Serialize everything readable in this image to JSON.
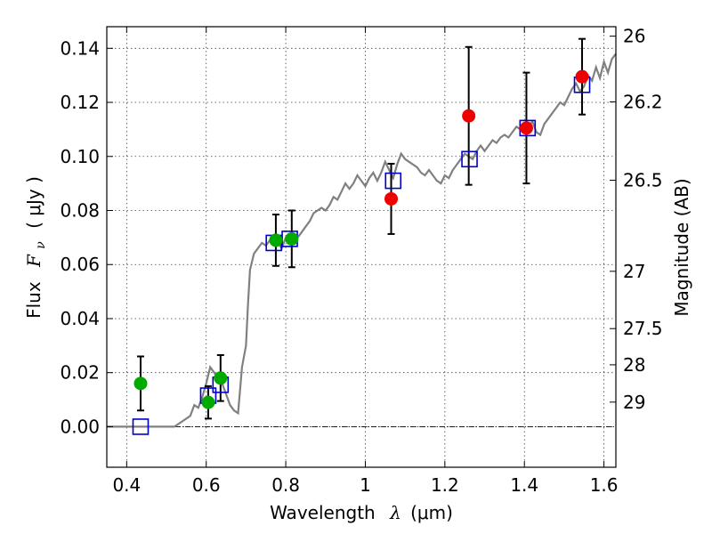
{
  "chart_data": {
    "type": "scatter",
    "title": "",
    "xlabel_text": "Wavelength",
    "xlabel_symbol": "λ",
    "xlabel_unit": "(μm)",
    "ylabel_text": "Flux",
    "ylabel_symbol": "F",
    "ylabel_subscript": "ν",
    "ylabel_unit": "( μJy )",
    "y2label": "Magnitude (AB)",
    "xlim": [
      0.35,
      1.63
    ],
    "ylim": [
      -0.015,
      0.148
    ],
    "grid": true,
    "x_ticks": [
      0.4,
      0.6,
      0.8,
      1.0,
      1.2,
      1.4,
      1.6
    ],
    "x_tick_labels": [
      "0.4",
      "0.6",
      "0.8",
      "1",
      "1.2",
      "1.4",
      "1.6"
    ],
    "y_ticks": [
      0.0,
      0.02,
      0.04,
      0.06,
      0.08,
      0.1,
      0.12,
      0.14
    ],
    "y_tick_labels": [
      "0.00",
      "0.02",
      "0.04",
      "0.06",
      "0.08",
      "0.10",
      "0.12",
      "0.14"
    ],
    "y2_ticks": [
      {
        "label": "26",
        "flux": 0.1445
      },
      {
        "label": "26.2",
        "flux": 0.1202
      },
      {
        "label": "26.5",
        "flux": 0.0912
      },
      {
        "label": "27",
        "flux": 0.0575
      },
      {
        "label": "27.5",
        "flux": 0.0363
      },
      {
        "label": "28",
        "flux": 0.0229
      },
      {
        "label": "29",
        "flux": 0.0091
      }
    ],
    "colors": {
      "spectrum": "#808080",
      "model": "#0000cc",
      "green": "#00aa00",
      "red": "#ee0000",
      "errorbar": "#000000",
      "zero_line": "#000000"
    },
    "spectrum": [
      [
        0.35,
        0.0
      ],
      [
        0.52,
        0.0
      ],
      [
        0.54,
        0.002
      ],
      [
        0.56,
        0.004
      ],
      [
        0.57,
        0.008
      ],
      [
        0.58,
        0.007
      ],
      [
        0.59,
        0.011
      ],
      [
        0.6,
        0.016
      ],
      [
        0.61,
        0.022
      ],
      [
        0.62,
        0.02
      ],
      [
        0.63,
        0.018
      ],
      [
        0.64,
        0.016
      ],
      [
        0.65,
        0.012
      ],
      [
        0.66,
        0.008
      ],
      [
        0.67,
        0.006
      ],
      [
        0.68,
        0.005
      ],
      [
        0.69,
        0.022
      ],
      [
        0.7,
        0.03
      ],
      [
        0.705,
        0.045
      ],
      [
        0.71,
        0.058
      ],
      [
        0.72,
        0.064
      ],
      [
        0.73,
        0.066
      ],
      [
        0.74,
        0.068
      ],
      [
        0.75,
        0.067
      ],
      [
        0.76,
        0.069
      ],
      [
        0.77,
        0.07
      ],
      [
        0.78,
        0.068
      ],
      [
        0.79,
        0.066
      ],
      [
        0.8,
        0.07
      ],
      [
        0.81,
        0.069
      ],
      [
        0.82,
        0.071
      ],
      [
        0.83,
        0.07
      ],
      [
        0.84,
        0.072
      ],
      [
        0.85,
        0.074
      ],
      [
        0.86,
        0.076
      ],
      [
        0.87,
        0.079
      ],
      [
        0.88,
        0.08
      ],
      [
        0.89,
        0.081
      ],
      [
        0.9,
        0.08
      ],
      [
        0.91,
        0.082
      ],
      [
        0.92,
        0.085
      ],
      [
        0.93,
        0.084
      ],
      [
        0.94,
        0.087
      ],
      [
        0.95,
        0.09
      ],
      [
        0.96,
        0.088
      ],
      [
        0.97,
        0.09
      ],
      [
        0.98,
        0.093
      ],
      [
        0.99,
        0.091
      ],
      [
        1.0,
        0.089
      ],
      [
        1.01,
        0.092
      ],
      [
        1.02,
        0.094
      ],
      [
        1.03,
        0.091
      ],
      [
        1.04,
        0.094
      ],
      [
        1.05,
        0.098
      ],
      [
        1.06,
        0.095
      ],
      [
        1.07,
        0.092
      ],
      [
        1.08,
        0.097
      ],
      [
        1.09,
        0.101
      ],
      [
        1.1,
        0.099
      ],
      [
        1.11,
        0.098
      ],
      [
        1.12,
        0.097
      ],
      [
        1.13,
        0.096
      ],
      [
        1.14,
        0.094
      ],
      [
        1.15,
        0.093
      ],
      [
        1.16,
        0.095
      ],
      [
        1.17,
        0.093
      ],
      [
        1.18,
        0.091
      ],
      [
        1.19,
        0.09
      ],
      [
        1.2,
        0.093
      ],
      [
        1.21,
        0.092
      ],
      [
        1.22,
        0.095
      ],
      [
        1.23,
        0.097
      ],
      [
        1.24,
        0.099
      ],
      [
        1.25,
        0.101
      ],
      [
        1.26,
        0.1
      ],
      [
        1.27,
        0.099
      ],
      [
        1.28,
        0.102
      ],
      [
        1.29,
        0.104
      ],
      [
        1.3,
        0.102
      ],
      [
        1.31,
        0.104
      ],
      [
        1.32,
        0.106
      ],
      [
        1.33,
        0.105
      ],
      [
        1.34,
        0.107
      ],
      [
        1.35,
        0.108
      ],
      [
        1.36,
        0.107
      ],
      [
        1.37,
        0.109
      ],
      [
        1.38,
        0.111
      ],
      [
        1.39,
        0.11
      ],
      [
        1.4,
        0.112
      ],
      [
        1.41,
        0.111
      ],
      [
        1.42,
        0.113
      ],
      [
        1.43,
        0.109
      ],
      [
        1.44,
        0.108
      ],
      [
        1.45,
        0.112
      ],
      [
        1.46,
        0.114
      ],
      [
        1.47,
        0.116
      ],
      [
        1.48,
        0.118
      ],
      [
        1.49,
        0.12
      ],
      [
        1.5,
        0.119
      ],
      [
        1.51,
        0.122
      ],
      [
        1.52,
        0.125
      ],
      [
        1.53,
        0.127
      ],
      [
        1.54,
        0.124
      ],
      [
        1.55,
        0.126
      ],
      [
        1.56,
        0.13
      ],
      [
        1.57,
        0.128
      ],
      [
        1.58,
        0.133
      ],
      [
        1.59,
        0.129
      ],
      [
        1.6,
        0.135
      ],
      [
        1.61,
        0.131
      ],
      [
        1.62,
        0.136
      ],
      [
        1.63,
        0.138
      ]
    ],
    "model_points": [
      {
        "x": 0.435,
        "y": 0.0
      },
      {
        "x": 0.605,
        "y": 0.0115
      },
      {
        "x": 0.636,
        "y": 0.0155
      },
      {
        "x": 0.77,
        "y": 0.068
      },
      {
        "x": 0.81,
        "y": 0.0695
      },
      {
        "x": 1.07,
        "y": 0.091
      },
      {
        "x": 1.262,
        "y": 0.099
      },
      {
        "x": 1.408,
        "y": 0.1105
      },
      {
        "x": 1.545,
        "y": 0.1265
      }
    ],
    "green_points": [
      {
        "x": 0.435,
        "y": 0.016,
        "err": 0.01
      },
      {
        "x": 0.605,
        "y": 0.009,
        "err": 0.006
      },
      {
        "x": 0.636,
        "y": 0.018,
        "err": 0.0085
      },
      {
        "x": 0.775,
        "y": 0.069,
        "err": 0.0095
      },
      {
        "x": 0.815,
        "y": 0.0695,
        "err": 0.0105
      }
    ],
    "red_points": [
      {
        "x": 1.065,
        "y": 0.0843,
        "err": 0.013
      },
      {
        "x": 1.26,
        "y": 0.115,
        "err": 0.0255
      },
      {
        "x": 1.405,
        "y": 0.1105,
        "err": 0.0205
      },
      {
        "x": 1.545,
        "y": 0.1295,
        "err": 0.014
      }
    ]
  }
}
